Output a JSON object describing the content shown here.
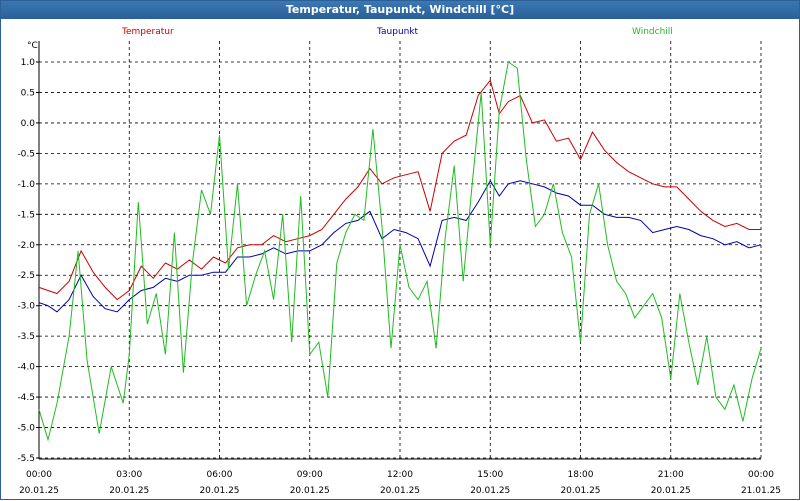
{
  "window": {
    "title": "Temperatur, Taupunkt, Windchill [°C]"
  },
  "colors": {
    "temperatur": "#cc0000",
    "taupunkt": "#0000aa",
    "windchill": "#22bb22",
    "grid": "#000000",
    "titlebar": "#2a5f98"
  },
  "chart_data": {
    "type": "line",
    "title": "Temperatur, Taupunkt, Windchill [°C]",
    "ylabel": "°C",
    "xlabel": "",
    "ylim": [
      -5.5,
      1.25
    ],
    "yticks": [
      "1.0",
      "0.5",
      "0.0",
      "-0.5",
      "-1.0",
      "-1.5",
      "-2.0",
      "-2.5",
      "-3.0",
      "-3.5",
      "-4.0",
      "-4.5",
      "-5.0",
      "-5.5"
    ],
    "xlim": [
      0,
      24
    ],
    "xticks": [
      {
        "time": "00:00",
        "date": "20.01.25"
      },
      {
        "time": "03:00",
        "date": "20.01.25"
      },
      {
        "time": "06:00",
        "date": "20.01.25"
      },
      {
        "time": "09:00",
        "date": "20.01.25"
      },
      {
        "time": "12:00",
        "date": "20.01.25"
      },
      {
        "time": "15:00",
        "date": "20.01.25"
      },
      {
        "time": "18:00",
        "date": "20.01.25"
      },
      {
        "time": "21:00",
        "date": "20.01.25"
      },
      {
        "time": "00:00",
        "date": "21.01.25"
      }
    ],
    "grid": true,
    "series": [
      {
        "name": "Temperatur",
        "x": [
          0,
          0.3,
          0.6,
          1,
          1.4,
          1.8,
          2.2,
          2.6,
          3,
          3.4,
          3.8,
          4.2,
          4.6,
          5,
          5.4,
          5.8,
          6.2,
          6.6,
          7,
          7.4,
          7.8,
          8.2,
          8.6,
          9,
          9.4,
          9.8,
          10.2,
          10.6,
          11,
          11.4,
          11.8,
          12.2,
          12.6,
          13,
          13.4,
          13.8,
          14.2,
          14.6,
          15,
          15.3,
          15.6,
          16,
          16.4,
          16.8,
          17.2,
          17.6,
          18,
          18.4,
          18.8,
          19.2,
          19.6,
          20,
          20.4,
          20.8,
          21.2,
          21.6,
          22,
          22.4,
          22.8,
          23.2,
          23.6,
          24
        ],
        "values": [
          -2.7,
          -2.75,
          -2.8,
          -2.6,
          -2.1,
          -2.45,
          -2.7,
          -2.9,
          -2.75,
          -2.35,
          -2.55,
          -2.3,
          -2.4,
          -2.25,
          -2.4,
          -2.2,
          -2.3,
          -2.05,
          -2.0,
          -2.0,
          -1.85,
          -1.95,
          -1.9,
          -1.85,
          -1.75,
          -1.5,
          -1.25,
          -1.05,
          -0.75,
          -1.0,
          -0.9,
          -0.85,
          -0.8,
          -1.45,
          -0.5,
          -0.3,
          -0.2,
          0.45,
          0.7,
          0.15,
          0.35,
          0.45,
          0.0,
          0.05,
          -0.3,
          -0.25,
          -0.6,
          -0.15,
          -0.45,
          -0.65,
          -0.8,
          -0.9,
          -1.0,
          -1.05,
          -1.05,
          -1.25,
          -1.45,
          -1.6,
          -1.7,
          -1.65,
          -1.75,
          -1.75
        ]
      },
      {
        "name": "Taupunkt",
        "x": [
          0,
          0.3,
          0.6,
          1,
          1.4,
          1.8,
          2.2,
          2.6,
          3,
          3.4,
          3.8,
          4.2,
          4.6,
          5,
          5.4,
          5.8,
          6.2,
          6.6,
          7,
          7.4,
          7.8,
          8.2,
          8.6,
          9,
          9.4,
          9.8,
          10.2,
          10.6,
          11,
          11.4,
          11.8,
          12.2,
          12.6,
          13,
          13.4,
          13.8,
          14.2,
          14.6,
          15,
          15.3,
          15.6,
          16,
          16.4,
          16.8,
          17.2,
          17.6,
          18,
          18.4,
          18.8,
          19.2,
          19.6,
          20,
          20.4,
          20.8,
          21.2,
          21.6,
          22,
          22.4,
          22.8,
          23.2,
          23.6,
          24
        ],
        "values": [
          -2.95,
          -3.0,
          -3.1,
          -2.9,
          -2.5,
          -2.85,
          -3.05,
          -3.1,
          -2.9,
          -2.75,
          -2.7,
          -2.55,
          -2.6,
          -2.5,
          -2.5,
          -2.45,
          -2.45,
          -2.2,
          -2.2,
          -2.15,
          -2.05,
          -2.15,
          -2.1,
          -2.1,
          -2.0,
          -1.8,
          -1.65,
          -1.6,
          -1.45,
          -1.9,
          -1.75,
          -1.8,
          -1.9,
          -2.35,
          -1.6,
          -1.55,
          -1.6,
          -1.3,
          -0.95,
          -1.2,
          -1.0,
          -0.95,
          -1.0,
          -1.05,
          -1.15,
          -1.2,
          -1.35,
          -1.35,
          -1.5,
          -1.55,
          -1.55,
          -1.6,
          -1.8,
          -1.75,
          -1.7,
          -1.75,
          -1.85,
          -1.9,
          -2.0,
          -1.95,
          -2.05,
          -2.0
        ]
      },
      {
        "name": "Windchill",
        "x": [
          0,
          0.3,
          0.6,
          1,
          1.3,
          1.6,
          2.0,
          2.4,
          2.8,
          3.0,
          3.3,
          3.6,
          3.9,
          4.2,
          4.5,
          4.8,
          5.1,
          5.4,
          5.7,
          6.0,
          6.3,
          6.6,
          6.9,
          7.2,
          7.5,
          7.8,
          8.1,
          8.4,
          8.7,
          9.0,
          9.3,
          9.6,
          9.9,
          10.2,
          10.5,
          10.8,
          11.1,
          11.4,
          11.7,
          12.0,
          12.3,
          12.6,
          12.9,
          13.2,
          13.5,
          13.8,
          14.1,
          14.4,
          14.7,
          15.0,
          15.3,
          15.6,
          15.9,
          16.2,
          16.5,
          16.8,
          17.1,
          17.4,
          17.7,
          18.0,
          18.3,
          18.6,
          18.9,
          19.2,
          19.5,
          19.8,
          20.1,
          20.4,
          20.7,
          21.0,
          21.3,
          21.6,
          21.9,
          22.2,
          22.5,
          22.8,
          23.1,
          23.4,
          23.7,
          24.0
        ],
        "values": [
          -4.7,
          -5.2,
          -4.6,
          -3.5,
          -2.1,
          -3.9,
          -5.1,
          -4.0,
          -4.6,
          -3.8,
          -1.3,
          -3.3,
          -2.8,
          -3.8,
          -1.8,
          -4.1,
          -2.3,
          -1.1,
          -1.5,
          -0.2,
          -2.4,
          -1.0,
          -3.0,
          -2.5,
          -2.1,
          -2.9,
          -1.5,
          -3.6,
          -1.2,
          -3.8,
          -3.6,
          -4.5,
          -2.3,
          -1.8,
          -1.5,
          -1.6,
          -0.1,
          -1.7,
          -3.7,
          -2.0,
          -2.7,
          -2.9,
          -2.6,
          -3.7,
          -1.9,
          -0.7,
          -2.6,
          -1.0,
          0.5,
          -2.0,
          0.2,
          1.0,
          0.9,
          -0.6,
          -1.7,
          -1.5,
          -1.0,
          -1.8,
          -2.2,
          -3.6,
          -1.5,
          -1.0,
          -2.0,
          -2.6,
          -2.8,
          -3.2,
          -3.0,
          -2.8,
          -3.2,
          -4.2,
          -2.8,
          -3.6,
          -4.3,
          -3.5,
          -4.5,
          -4.7,
          -4.3,
          -4.9,
          -4.2,
          -3.7
        ]
      }
    ]
  }
}
